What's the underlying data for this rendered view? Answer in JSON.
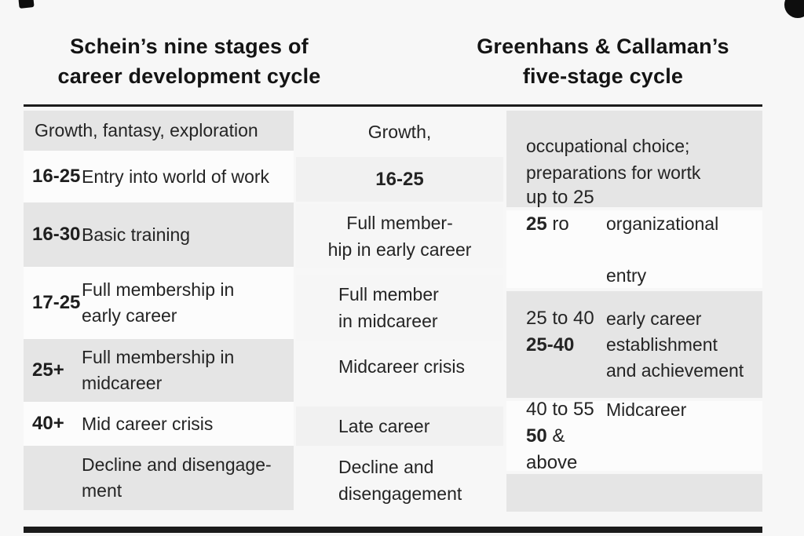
{
  "headers": {
    "schein_line1": "Schein’s nine stages of",
    "schein_line2": "career development cycle",
    "greenhaus_line1": "Greenhans & Callaman’s",
    "greenhaus_line2": "five-stage cycle"
  },
  "left_column": {
    "rows": [
      {
        "age": "",
        "label": "Growth, fantasy, exploration"
      },
      {
        "age": "16-25",
        "label": "Entry into world of work"
      },
      {
        "age": "16-30",
        "label": "Basic training"
      },
      {
        "age": "17-25",
        "label": "Full membership in\nearly career"
      },
      {
        "age": "25+",
        "label": "Full membership in\nmidcareer"
      },
      {
        "age": "40+",
        "label": "Mid career crisis"
      },
      {
        "age": "",
        "label": "Decline and disengage-\nment"
      }
    ]
  },
  "middle_column": {
    "rows": [
      {
        "text": "Growth,"
      },
      {
        "text": "16-25"
      },
      {
        "text": "Full member-\nhip in early career"
      },
      {
        "text": "Full member\nin midcareer"
      },
      {
        "text": "Midcareer crisis"
      },
      {
        "text": "Late career"
      },
      {
        "text": "Decline and\ndisengagement"
      }
    ]
  },
  "right_column": {
    "rows": [
      {
        "label": "occupational choice;\npreparations for wortk"
      },
      {
        "age1": "up to 25",
        "age2_strong": "25",
        "age2_rest": " ro",
        "label1": "organizational",
        "label2": "entry"
      },
      {
        "age1": "25 to 40",
        "age2_strong": "25-40",
        "age2_rest": "",
        "label": "early career\nestablishment\nand achievement"
      },
      {
        "age1": "40 to 55",
        "age2_strong": "50",
        "age2_rest": " & above",
        "label": "Midcareer"
      },
      {
        "label": ""
      }
    ]
  },
  "colors": {
    "page_background": "#f7f7f7",
    "shaded_cell": "#e5e5e5",
    "light_cell": "#f1f1f1",
    "rule": "#1b1b1b",
    "text": "#242424"
  }
}
